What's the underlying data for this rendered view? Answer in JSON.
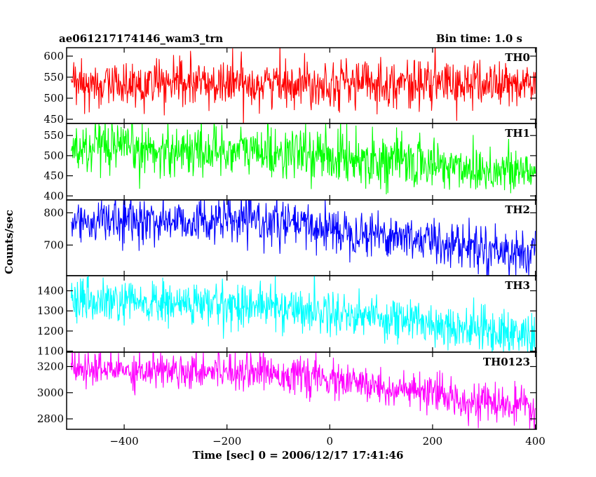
{
  "header": {
    "source_name": "ae061217174146_wam3_trn",
    "bin_time": "Bin time: 1.0 s"
  },
  "chart_data": {
    "type": "line",
    "shared_x": {
      "label": "Time [sec] 0 = 2006/12/17 17:41:46",
      "range": [
        -512,
        402
      ],
      "ticks": [
        -400,
        -200,
        0,
        200,
        400
      ],
      "tick_labels": [
        "−400",
        "−200",
        "0",
        "200",
        "400"
      ],
      "bin": 1.0
    },
    "ylabel": "Counts/sec",
    "panels": [
      {
        "name": "TH0",
        "color": "#ff0000",
        "ylim": [
          440,
          620
        ],
        "yticks": [
          450,
          500,
          550,
          600
        ],
        "trend": [
          [
            -503,
            530
          ],
          [
            0,
            538
          ],
          [
            400,
            532
          ]
        ],
        "noise": 28
      },
      {
        "name": "TH1",
        "color": "#00ff00",
        "ylim": [
          390,
          580
        ],
        "yticks": [
          400,
          450,
          500,
          550
        ],
        "trend": [
          [
            -503,
            515
          ],
          [
            -150,
            512
          ],
          [
            100,
            490
          ],
          [
            400,
            455
          ]
        ],
        "noise": 32
      },
      {
        "name": "TH2",
        "color": "#0000ff",
        "ylim": [
          605,
          840
        ],
        "yticks": [
          700,
          800
        ],
        "trend": [
          [
            -503,
            775
          ],
          [
            -150,
            775
          ],
          [
            100,
            735
          ],
          [
            400,
            670
          ]
        ],
        "noise": 35
      },
      {
        "name": "TH3",
        "color": "#00ffff",
        "ylim": [
          1095,
          1475
        ],
        "yticks": [
          1100,
          1200,
          1300,
          1400
        ],
        "trend": [
          [
            -503,
            1340
          ],
          [
            -150,
            1330
          ],
          [
            100,
            1270
          ],
          [
            400,
            1175
          ]
        ],
        "noise": 55
      },
      {
        "name": "TH0123",
        "color": "#ff00ff",
        "ylim": [
          2720,
          3310
        ],
        "yticks": [
          2800,
          3000,
          3200
        ],
        "trend": [
          [
            -503,
            3175
          ],
          [
            -150,
            3175
          ],
          [
            100,
            3040
          ],
          [
            400,
            2870
          ]
        ],
        "noise": 70
      }
    ]
  }
}
